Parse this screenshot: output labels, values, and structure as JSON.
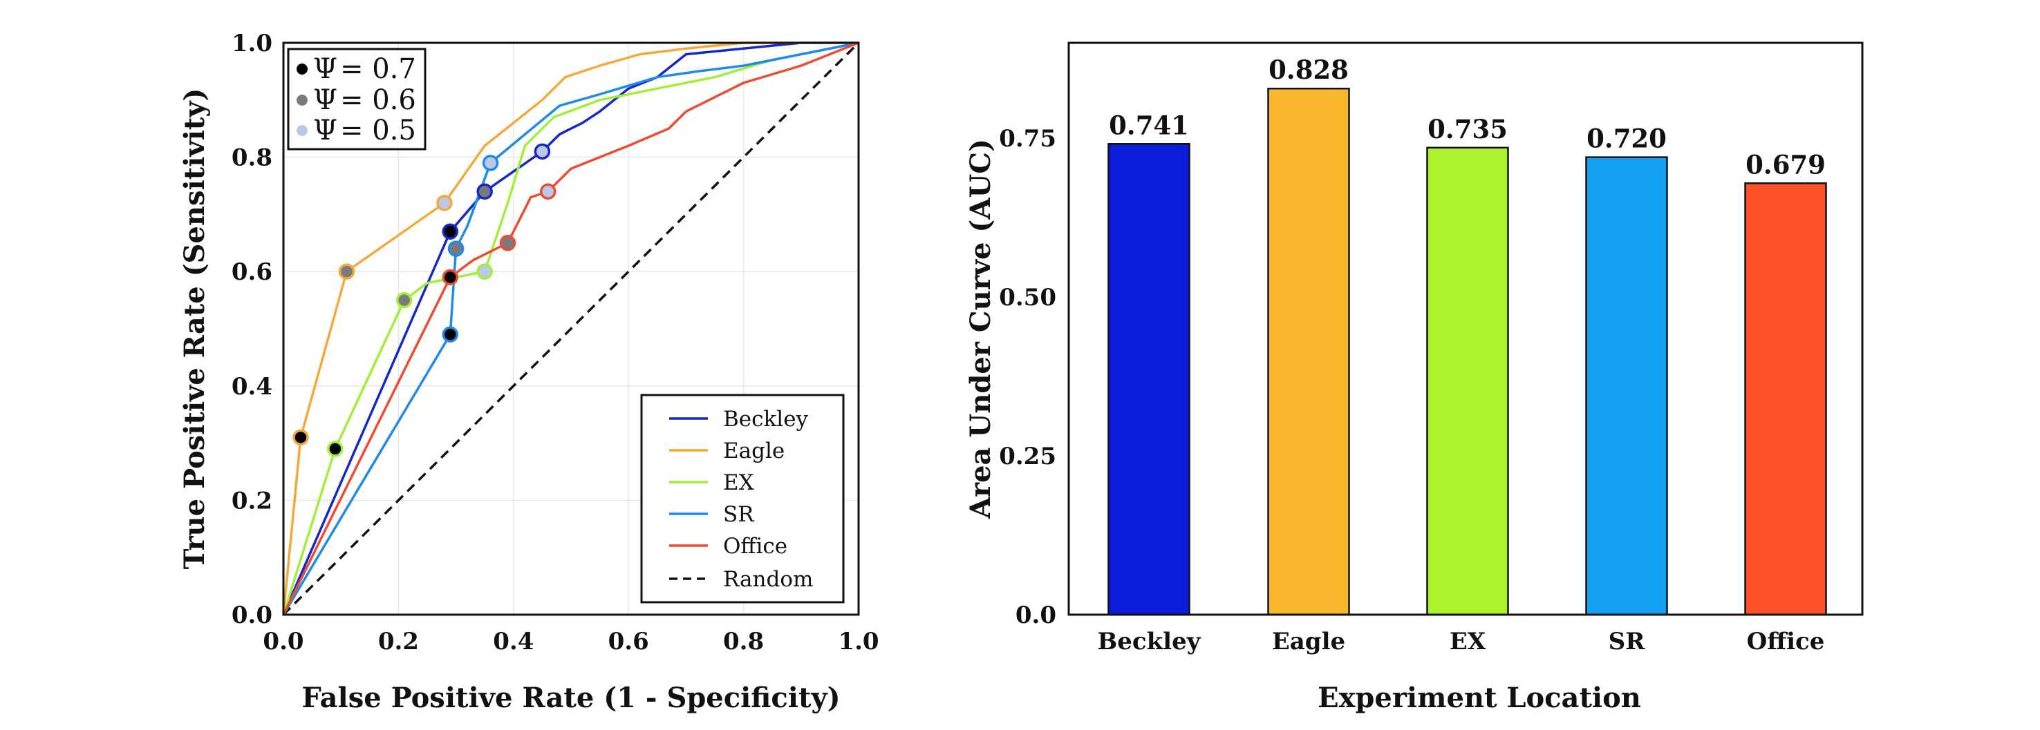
{
  "chart_data": [
    {
      "type": "line",
      "title": "",
      "xlabel": "False Positive Rate (1 - Specificity)",
      "ylabel": "True Positive Rate (Sensitivity)",
      "xlim": [
        0.0,
        1.0
      ],
      "ylim": [
        0.0,
        1.0
      ],
      "xticks": [
        "0.0",
        "0.2",
        "0.4",
        "0.6",
        "0.8",
        "1.0"
      ],
      "yticks": [
        "0.0",
        "0.2",
        "0.4",
        "0.6",
        "0.8",
        "1.0"
      ],
      "grid": true,
      "legend_position": "bottom-right",
      "series": [
        {
          "name": "Beckley",
          "color": "#1527c7",
          "points": [
            [
              0,
              0
            ],
            [
              0.29,
              0.67
            ],
            [
              0.35,
              0.74
            ],
            [
              0.45,
              0.81
            ],
            [
              0.48,
              0.84
            ],
            [
              0.5,
              0.85
            ],
            [
              0.52,
              0.86
            ],
            [
              0.55,
              0.88
            ],
            [
              0.6,
              0.92
            ],
            [
              0.65,
              0.94
            ],
            [
              0.7,
              0.98
            ],
            [
              0.8,
              0.99
            ],
            [
              0.9,
              1.0
            ],
            [
              1.0,
              1.0
            ]
          ]
        },
        {
          "name": "Eagle",
          "color": "#f4a93b",
          "points": [
            [
              0,
              0
            ],
            [
              0.03,
              0.31
            ],
            [
              0.11,
              0.6
            ],
            [
              0.28,
              0.72
            ],
            [
              0.35,
              0.82
            ],
            [
              0.4,
              0.86
            ],
            [
              0.45,
              0.9
            ],
            [
              0.49,
              0.94
            ],
            [
              0.55,
              0.96
            ],
            [
              0.62,
              0.98
            ],
            [
              0.7,
              0.99
            ],
            [
              0.8,
              1.0
            ],
            [
              1.0,
              1.0
            ]
          ]
        },
        {
          "name": "EX",
          "color": "#a2ef3a",
          "points": [
            [
              0,
              0
            ],
            [
              0.09,
              0.29
            ],
            [
              0.21,
              0.55
            ],
            [
              0.25,
              0.58
            ],
            [
              0.35,
              0.6
            ],
            [
              0.39,
              0.72
            ],
            [
              0.42,
              0.82
            ],
            [
              0.47,
              0.87
            ],
            [
              0.55,
              0.9
            ],
            [
              0.65,
              0.92
            ],
            [
              0.75,
              0.94
            ],
            [
              0.85,
              0.97
            ],
            [
              1.0,
              1.0
            ]
          ]
        },
        {
          "name": "SR",
          "color": "#1f8ae8",
          "points": [
            [
              0,
              0
            ],
            [
              0.29,
              0.49
            ],
            [
              0.3,
              0.64
            ],
            [
              0.32,
              0.68
            ],
            [
              0.36,
              0.79
            ],
            [
              0.42,
              0.84
            ],
            [
              0.48,
              0.89
            ],
            [
              0.55,
              0.91
            ],
            [
              0.65,
              0.94
            ],
            [
              0.72,
              0.95
            ],
            [
              0.8,
              0.96
            ],
            [
              0.9,
              0.98
            ],
            [
              1.0,
              1.0
            ]
          ]
        },
        {
          "name": "Office",
          "color": "#ec4c32",
          "points": [
            [
              0,
              0
            ],
            [
              0.29,
              0.59
            ],
            [
              0.33,
              0.62
            ],
            [
              0.39,
              0.65
            ],
            [
              0.43,
              0.73
            ],
            [
              0.46,
              0.74
            ],
            [
              0.5,
              0.78
            ],
            [
              0.55,
              0.8
            ],
            [
              0.6,
              0.82
            ],
            [
              0.67,
              0.85
            ],
            [
              0.7,
              0.88
            ],
            [
              0.8,
              0.93
            ],
            [
              0.9,
              0.96
            ],
            [
              1.0,
              1.0
            ]
          ]
        },
        {
          "name": "Random",
          "color": "#111111",
          "dashed": true,
          "points": [
            [
              0,
              0
            ],
            [
              1,
              1
            ]
          ]
        }
      ],
      "threshold_markers": [
        {
          "series": "Beckley",
          "psi": 0.7,
          "x": 0.29,
          "y": 0.67
        },
        {
          "series": "Beckley",
          "psi": 0.6,
          "x": 0.35,
          "y": 0.74
        },
        {
          "series": "Beckley",
          "psi": 0.5,
          "x": 0.45,
          "y": 0.81
        },
        {
          "series": "Eagle",
          "psi": 0.7,
          "x": 0.03,
          "y": 0.31
        },
        {
          "series": "Eagle",
          "psi": 0.6,
          "x": 0.11,
          "y": 0.6
        },
        {
          "series": "Eagle",
          "psi": 0.5,
          "x": 0.28,
          "y": 0.72
        },
        {
          "series": "EX",
          "psi": 0.7,
          "x": 0.09,
          "y": 0.29
        },
        {
          "series": "EX",
          "psi": 0.6,
          "x": 0.21,
          "y": 0.55
        },
        {
          "series": "EX",
          "psi": 0.5,
          "x": 0.35,
          "y": 0.6
        },
        {
          "series": "SR",
          "psi": 0.7,
          "x": 0.29,
          "y": 0.49
        },
        {
          "series": "SR",
          "psi": 0.6,
          "x": 0.3,
          "y": 0.64
        },
        {
          "series": "SR",
          "psi": 0.5,
          "x": 0.36,
          "y": 0.79
        },
        {
          "series": "Office",
          "psi": 0.7,
          "x": 0.29,
          "y": 0.59
        },
        {
          "series": "Office",
          "psi": 0.6,
          "x": 0.39,
          "y": 0.65
        },
        {
          "series": "Office",
          "psi": 0.5,
          "x": 0.46,
          "y": 0.74
        }
      ],
      "psi_legend": [
        {
          "symbol": "Ψ",
          "label": "= 0.7",
          "psi": 0.7,
          "color": "#000000"
        },
        {
          "symbol": "Ψ",
          "label": "= 0.6",
          "psi": 0.6,
          "color": "#7a7a7a"
        },
        {
          "symbol": "Ψ",
          "label": "= 0.5",
          "psi": 0.5,
          "color": "#bcc8ea"
        }
      ]
    },
    {
      "type": "bar",
      "title": "",
      "xlabel": "Experiment Location",
      "ylabel": "Area Under Curve (AUC)",
      "categories": [
        "Beckley",
        "Eagle",
        "EX",
        "SR",
        "Office"
      ],
      "values": [
        0.741,
        0.828,
        0.735,
        0.72,
        0.679
      ],
      "value_labels": [
        "0.741",
        "0.828",
        "0.735",
        "0.720",
        "0.679"
      ],
      "colors": [
        "#0b1ddb",
        "#f9b72d",
        "#a9f22c",
        "#13a0f2",
        "#fd5227"
      ],
      "ylim": [
        0.0,
        0.9
      ],
      "yticks": [
        "0.0",
        "0.25",
        "0.50",
        "0.75"
      ],
      "ytick_values": [
        0.0,
        0.25,
        0.5,
        0.75
      ],
      "grid": false
    }
  ]
}
